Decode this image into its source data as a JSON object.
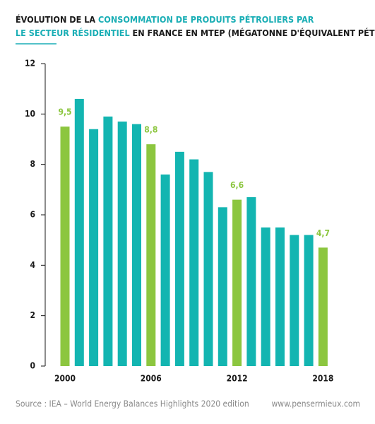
{
  "chart_data": {
    "type": "bar",
    "title_parts": [
      {
        "text": "ÉVOLUTION DE LA ",
        "color": "#1a1a1a"
      },
      {
        "text": "CONSOMMATION DE PRODUITS PÉTROLIERS PAR",
        "color": "#1aaeb5"
      },
      {
        "text": "LE SECTEUR RÉSIDENTIEL",
        "color": "#1aaeb5"
      },
      {
        "text": " EN FRANCE EN MTEP (MÉGATONNE D'ÉQUIVALENT PÉTROLE)",
        "color": "#1a1a1a"
      }
    ],
    "categories": [
      "2000",
      null,
      null,
      null,
      null,
      null,
      "2006",
      null,
      null,
      null,
      null,
      null,
      "2012",
      null,
      null,
      null,
      null,
      null,
      "2018"
    ],
    "values": [
      9.5,
      10.6,
      9.4,
      9.9,
      9.7,
      9.6,
      8.8,
      7.6,
      8.5,
      8.2,
      7.7,
      6.3,
      6.6,
      6.7,
      5.5,
      5.5,
      5.2,
      5.2,
      4.7
    ],
    "value_labels": [
      "9,5",
      null,
      null,
      null,
      null,
      null,
      "8,8",
      null,
      null,
      null,
      null,
      null,
      "6,6",
      null,
      null,
      null,
      null,
      null,
      "4,7"
    ],
    "colors": [
      "#8cc63f",
      "#13b5b1",
      "#13b5b1",
      "#13b5b1",
      "#13b5b1",
      "#13b5b1",
      "#8cc63f",
      "#13b5b1",
      "#13b5b1",
      "#13b5b1",
      "#13b5b1",
      "#13b5b1",
      "#8cc63f",
      "#13b5b1",
      "#13b5b1",
      "#13b5b1",
      "#13b5b1",
      "#13b5b1",
      "#8cc63f"
    ],
    "ylim": [
      0,
      12
    ],
    "yticks": [
      0,
      2,
      4,
      6,
      8,
      10,
      12
    ],
    "source": "Source : IEA – World Energy Balances Highlights 2020 edition",
    "website": "www.pensermieux.com"
  }
}
